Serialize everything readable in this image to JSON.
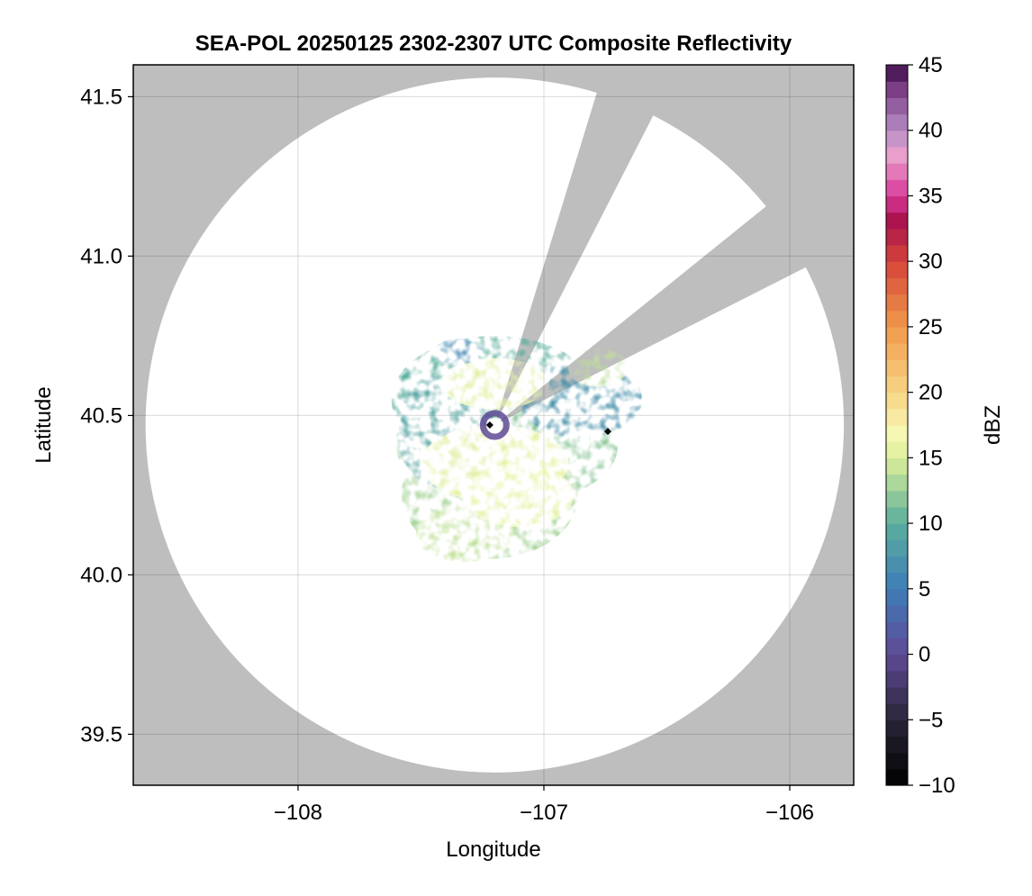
{
  "chart_data": {
    "type": "heatmap",
    "title": "SEA-POL 20250125 2302-2307 UTC Composite Reflectivity",
    "xlabel": "Longitude",
    "ylabel": "Latitude",
    "xlim": [
      -108.67,
      -105.74
    ],
    "ylim": [
      39.34,
      41.6
    ],
    "x_ticks": [
      -108,
      -107,
      -106
    ],
    "x_tick_labels": [
      "−108",
      "−107",
      "−106"
    ],
    "y_ticks": [
      39.5,
      40.0,
      40.5,
      41.0,
      41.5
    ],
    "y_tick_labels": [
      "39.5",
      "40.0",
      "40.5",
      "41.0",
      "41.5"
    ],
    "grid": true,
    "background_color": "#bebebe",
    "coverage_color": "#ffffff",
    "radar_site": {
      "lon": -107.2,
      "lat": 40.47
    },
    "radar_range_deg": {
      "lon": 1.42,
      "lat": 1.09
    },
    "blocked_sectors_deg_from_north": [
      [
        17,
        27
      ],
      [
        51,
        63
      ]
    ],
    "marker_points": [
      {
        "lon": -106.74,
        "lat": 40.45
      },
      {
        "lon": -107.22,
        "lat": 40.47
      }
    ],
    "colorbar": {
      "label": "dBZ",
      "range": [
        -10,
        45
      ],
      "ticks": [
        45,
        40,
        35,
        30,
        25,
        20,
        15,
        10,
        5,
        0,
        -5,
        -10
      ],
      "tick_labels": [
        "45",
        "40",
        "35",
        "30",
        "25",
        "20",
        "15",
        "10",
        "5",
        "0",
        "−5",
        "−10"
      ],
      "colormap": "Spectral_r-like",
      "stops": [
        {
          "value": -10,
          "color": "#000000"
        },
        {
          "value": -5,
          "color": "#2a2538"
        },
        {
          "value": 0,
          "color": "#5f4a96"
        },
        {
          "value": 5,
          "color": "#3f7db8"
        },
        {
          "value": 10,
          "color": "#5aae9c"
        },
        {
          "value": 15,
          "color": "#dcef9a"
        },
        {
          "value": 17,
          "color": "#f8f7b4"
        },
        {
          "value": 20,
          "color": "#f7d584"
        },
        {
          "value": 25,
          "color": "#f09a4a"
        },
        {
          "value": 30,
          "color": "#d6443a"
        },
        {
          "value": 33,
          "color": "#a8124a"
        },
        {
          "value": 35,
          "color": "#d8389a"
        },
        {
          "value": 38,
          "color": "#eba0cc"
        },
        {
          "value": 40,
          "color": "#b68ec6"
        },
        {
          "value": 43,
          "color": "#80428a"
        },
        {
          "value": 45,
          "color": "#3b0a45"
        }
      ]
    },
    "echo_region": {
      "approx_lon_range": [
        -107.7,
        -106.65
      ],
      "approx_lat_range": [
        40.03,
        40.78
      ],
      "typical_dbz": [
        8,
        16
      ]
    }
  }
}
